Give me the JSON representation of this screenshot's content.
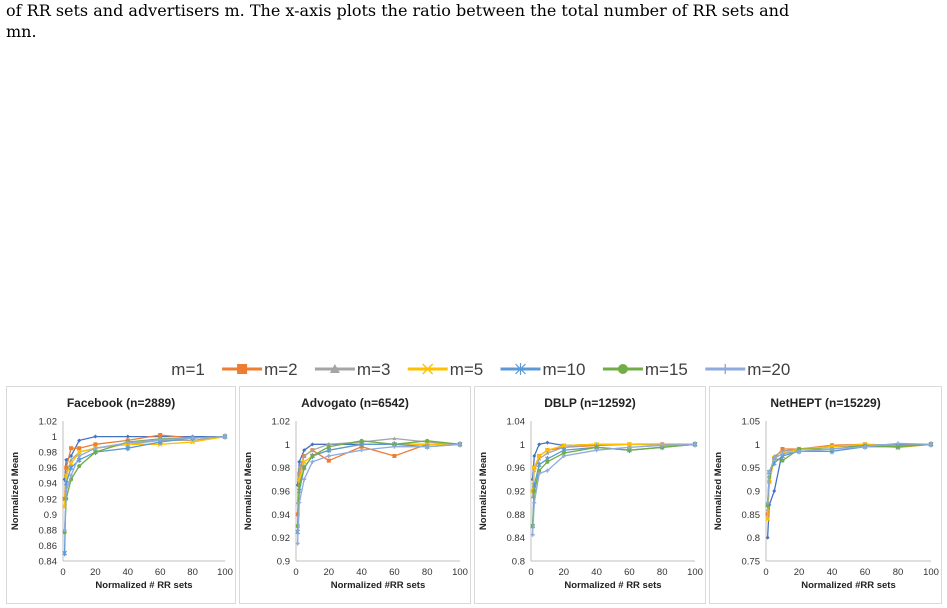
{
  "caption": {
    "line1": "of RR sets and advertisers m. The x-axis plots the ratio between the total number of RR sets and",
    "line2": "mn."
  },
  "legend": {
    "items": [
      {
        "label": "m=1",
        "color": "#4472c4",
        "marker": "diamond"
      },
      {
        "label": "m=2",
        "color": "#ed7d31",
        "marker": "square"
      },
      {
        "label": "m=3",
        "color": "#a5a5a5",
        "marker": "triangle"
      },
      {
        "label": "m=5",
        "color": "#ffc000",
        "marker": "x"
      },
      {
        "label": "m=10",
        "color": "#5b9bd5",
        "marker": "star"
      },
      {
        "label": "m=15",
        "color": "#70ad47",
        "marker": "circle"
      },
      {
        "label": "m=20",
        "color": "#8faadc",
        "marker": "plus"
      }
    ]
  },
  "chart_data": [
    {
      "type": "line",
      "title": "Facebook (n=2889)",
      "xlabel": "Normalized # RR sets",
      "ylabel": "Normalized Mean",
      "xlim": [
        0,
        100
      ],
      "ylim": [
        0.84,
        1.02
      ],
      "yticks": [
        "0.84",
        "0.86",
        "0.88",
        "0.9",
        "0.92",
        "0.94",
        "0.96",
        "0.98",
        "1",
        "1.02"
      ],
      "xticks": [
        "0",
        "20",
        "40",
        "60",
        "80",
        "100"
      ],
      "x": [
        1,
        2,
        5,
        10,
        20,
        40,
        60,
        80,
        100
      ],
      "series": [
        {
          "name": "m=1",
          "values": [
            0.945,
            0.97,
            0.975,
            0.995,
            1.0,
            1.0,
            1.0,
            1.0,
            1.0
          ]
        },
        {
          "name": "m=2",
          "values": [
            0.92,
            0.96,
            0.985,
            0.985,
            0.99,
            0.995,
            1.002,
            0.998,
            1.0
          ]
        },
        {
          "name": "m=3",
          "values": [
            0.91,
            0.95,
            0.97,
            0.98,
            0.985,
            0.99,
            0.995,
            0.995,
            1.0
          ]
        },
        {
          "name": "m=5",
          "values": [
            0.91,
            0.95,
            0.965,
            0.98,
            0.985,
            0.99,
            0.99,
            0.993,
            1.0
          ]
        },
        {
          "name": "m=10",
          "values": [
            0.85,
            0.94,
            0.96,
            0.97,
            0.98,
            0.985,
            0.993,
            0.998,
            1.0
          ]
        },
        {
          "name": "m=15",
          "values": [
            0.877,
            0.92,
            0.945,
            0.962,
            0.98,
            0.993,
            0.997,
            0.998,
            1.0
          ]
        },
        {
          "name": "m=20",
          "values": [
            0.88,
            0.93,
            0.95,
            0.975,
            0.985,
            0.992,
            0.996,
            0.998,
            1.0
          ]
        }
      ]
    },
    {
      "type": "line",
      "title": "Advogato (n=6542)",
      "xlabel": "Normalized #RR sets",
      "ylabel": "Normalized Mean",
      "xlim": [
        0,
        100
      ],
      "ylim": [
        0.9,
        1.02
      ],
      "yticks": [
        "0.9",
        "0.92",
        "0.94",
        "0.96",
        "0.98",
        "1",
        "1.02"
      ],
      "xticks": [
        "0",
        "20",
        "40",
        "60",
        "80",
        "100"
      ],
      "x": [
        1,
        2,
        5,
        10,
        20,
        40,
        60,
        80,
        100
      ],
      "series": [
        {
          "name": "m=1",
          "values": [
            0.965,
            0.985,
            0.995,
            1.0,
            1.0,
            1.0,
            1.0,
            1.0,
            1.0
          ]
        },
        {
          "name": "m=2",
          "values": [
            0.94,
            0.975,
            0.99,
            0.995,
            0.986,
            0.998,
            0.99,
            1.0,
            1.0
          ]
        },
        {
          "name": "m=3",
          "values": [
            0.95,
            0.98,
            0.99,
            0.995,
            1.0,
            1.002,
            1.005,
            1.002,
            1.0
          ]
        },
        {
          "name": "m=5",
          "values": [
            0.93,
            0.97,
            0.985,
            0.99,
            0.995,
            1.0,
            1.0,
            1.0,
            1.0
          ]
        },
        {
          "name": "m=10",
          "values": [
            0.925,
            0.96,
            0.98,
            0.99,
            0.995,
            1.0,
            1.0,
            0.998,
            1.0
          ]
        },
        {
          "name": "m=15",
          "values": [
            0.93,
            0.965,
            0.98,
            0.99,
            0.998,
            1.003,
            1.0,
            1.003,
            1.0
          ]
        },
        {
          "name": "m=20",
          "values": [
            0.915,
            0.95,
            0.97,
            0.985,
            0.99,
            0.995,
            0.998,
            0.998,
            1.0
          ]
        }
      ]
    },
    {
      "type": "line",
      "title": "DBLP (n=12592)",
      "xlabel": "Normalized # RR sets",
      "ylabel": "Normalized Mean",
      "xlim": [
        0,
        100
      ],
      "ylim": [
        0.8,
        1.04
      ],
      "yticks": [
        "0.8",
        "0.84",
        "0.88",
        "0.92",
        "0.96",
        "1",
        "1.04"
      ],
      "xticks": [
        "0",
        "20",
        "40",
        "60",
        "80",
        "100"
      ],
      "x": [
        1,
        2,
        5,
        10,
        20,
        40,
        60,
        80,
        100
      ],
      "series": [
        {
          "name": "m=1",
          "values": [
            0.94,
            0.98,
            1.0,
            1.003,
            0.998,
            1.0,
            1.0,
            1.0,
            1.0
          ]
        },
        {
          "name": "m=2",
          "values": [
            0.92,
            0.96,
            0.98,
            0.99,
            0.995,
            0.998,
            1.0,
            1.0,
            1.0
          ]
        },
        {
          "name": "m=3",
          "values": [
            0.91,
            0.955,
            0.975,
            0.985,
            0.995,
            1.0,
            1.0,
            1.0,
            1.0
          ]
        },
        {
          "name": "m=5",
          "values": [
            0.92,
            0.96,
            0.98,
            0.99,
            0.998,
            1.0,
            1.0,
            0.998,
            1.0
          ]
        },
        {
          "name": "m=10",
          "values": [
            0.86,
            0.93,
            0.965,
            0.975,
            0.99,
            0.995,
            0.99,
            0.995,
            1.0
          ]
        },
        {
          "name": "m=15",
          "values": [
            0.86,
            0.92,
            0.955,
            0.97,
            0.985,
            0.995,
            0.99,
            0.995,
            1.0
          ]
        },
        {
          "name": "m=20",
          "values": [
            0.845,
            0.9,
            0.95,
            0.955,
            0.98,
            0.99,
            0.995,
            0.998,
            1.0
          ]
        }
      ]
    },
    {
      "type": "line",
      "title": "NetHEPT (n=15229)",
      "xlabel": "Normalized #RR sets",
      "ylabel": "Normalized Mean",
      "xlim": [
        0,
        100
      ],
      "ylim": [
        0.75,
        1.05
      ],
      "yticks": [
        "0.75",
        "0.8",
        "0.85",
        "0.9",
        "0.95",
        "1",
        "1.05"
      ],
      "xticks": [
        "0",
        "20",
        "40",
        "60",
        "80",
        "100"
      ],
      "x": [
        1,
        2,
        5,
        10,
        20,
        40,
        60,
        80,
        100
      ],
      "series": [
        {
          "name": "m=1",
          "values": [
            0.8,
            0.87,
            0.9,
            0.985,
            0.99,
            0.995,
            0.998,
            1.0,
            1.0
          ]
        },
        {
          "name": "m=2",
          "values": [
            0.85,
            0.92,
            0.97,
            0.99,
            0.99,
            0.998,
            1.0,
            0.995,
            1.0
          ]
        },
        {
          "name": "m=3",
          "values": [
            0.86,
            0.93,
            0.975,
            0.985,
            0.99,
            0.995,
            1.0,
            0.998,
            1.0
          ]
        },
        {
          "name": "m=5",
          "values": [
            0.84,
            0.92,
            0.97,
            0.98,
            0.99,
            0.995,
            1.0,
            0.993,
            1.0
          ]
        },
        {
          "name": "m=10",
          "values": [
            0.87,
            0.94,
            0.96,
            0.975,
            0.985,
            0.985,
            0.995,
            0.995,
            1.0
          ]
        },
        {
          "name": "m=15",
          "values": [
            0.87,
            0.93,
            0.97,
            0.965,
            0.99,
            0.99,
            0.997,
            0.995,
            1.0
          ]
        },
        {
          "name": "m=20",
          "values": [
            0.875,
            0.94,
            0.97,
            0.98,
            0.985,
            0.99,
            0.995,
            1.002,
            1.0
          ]
        }
      ]
    }
  ]
}
